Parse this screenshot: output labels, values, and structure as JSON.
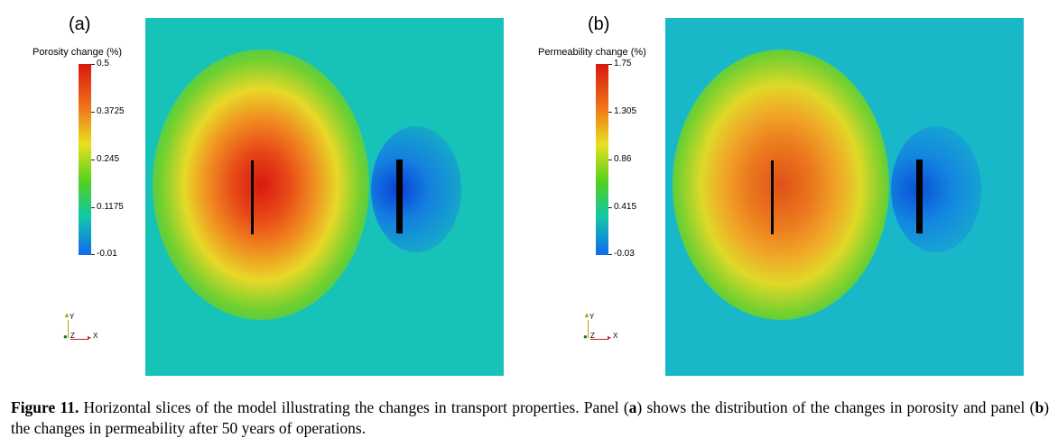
{
  "panels": [
    {
      "label": "(a)",
      "colorbar_title": "Porosity change (%)",
      "ticks": [
        "0.5",
        "0.3725",
        "0.245",
        "0.1175",
        "-0.01"
      ],
      "background_color": "#17c2b8"
    },
    {
      "label": "(b)",
      "colorbar_title": "Permeability change (%)",
      "ticks": [
        "1.75",
        "1.305",
        "0.86",
        "0.415",
        "-0.03"
      ],
      "background_color": "#18b8c8"
    }
  ],
  "axes_widget": {
    "y": "Y",
    "z": "Z",
    "x": "X"
  },
  "caption": {
    "label": "Figure 11.",
    "t1": " Horizontal slices of the model illustrating the changes in transport properties. Panel (",
    "a": "a",
    "t2": ") shows the distribution of the changes in porosity and panel (",
    "b": "b",
    "t3": ") the changes in permeability after 50 years of operations."
  },
  "colormap": [
    "#d81810",
    "#f07018",
    "#e8e020",
    "#50d020",
    "#10c8a8",
    "#1068f0"
  ]
}
